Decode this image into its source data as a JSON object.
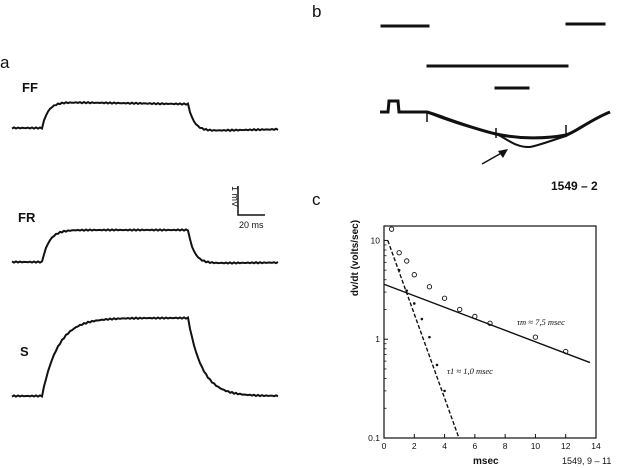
{
  "panels": {
    "a": {
      "letter": "a",
      "traces": [
        {
          "label": "FF",
          "plateau": 0.5,
          "undershoot": 0.5
        },
        {
          "label": "FR",
          "plateau": 0.7,
          "undershoot": 0.18
        },
        {
          "label": "S",
          "plateau": 1.0,
          "undershoot": 0.0
        }
      ],
      "scale_bar": {
        "voltage": "1 mV",
        "time": "20 ms"
      }
    },
    "b": {
      "letter": "b",
      "id_label": "1549 – 2"
    },
    "c": {
      "letter": "c",
      "corner_label": "1549, 9 – 11",
      "tau_m_label": "τm ≈ 7,5 msec",
      "tau_1_label": "τ1 ≈ 1,0 msec"
    }
  },
  "chart_data": {
    "type": "scatter",
    "title": "",
    "xlabel": "msec",
    "ylabel": "dv/dt (volts/sec)",
    "xlim": [
      0,
      14
    ],
    "ylim": [
      0.1,
      14
    ],
    "yscale": "log",
    "xticks": [
      "0",
      "2",
      "4",
      "6",
      "8",
      "10",
      "12",
      "14"
    ],
    "yticks": [
      {
        "value": 10,
        "label": "10"
      },
      {
        "value": 1,
        "label": "1"
      },
      {
        "value": 0.1,
        "label": "0.1"
      }
    ],
    "series": [
      {
        "marker": "open-circle",
        "x": [
          0.5,
          1.0,
          1.5,
          2.0,
          3.0,
          4.0,
          5.0,
          6.0,
          7.0,
          10.0,
          12.0
        ],
        "y": [
          13,
          7.5,
          6.2,
          4.5,
          3.4,
          2.6,
          2.0,
          1.7,
          1.45,
          1.05,
          0.75
        ]
      },
      {
        "marker": "dot",
        "x": [
          1.0,
          1.5,
          2.0,
          2.5,
          3.0,
          3.5,
          4.0
        ],
        "y": [
          5.0,
          3.1,
          2.3,
          1.6,
          1.05,
          0.55,
          0.3
        ]
      }
    ],
    "fits": [
      {
        "name": "τm ≈ 7,5 msec",
        "style": "solid",
        "x": [
          0,
          13.6
        ],
        "y": [
          3.6,
          0.58
        ]
      },
      {
        "name": "τ1 ≈ 1,0 msec",
        "style": "dashed",
        "x": [
          0.25,
          4.95
        ],
        "y": [
          10.0,
          0.1
        ]
      }
    ]
  }
}
